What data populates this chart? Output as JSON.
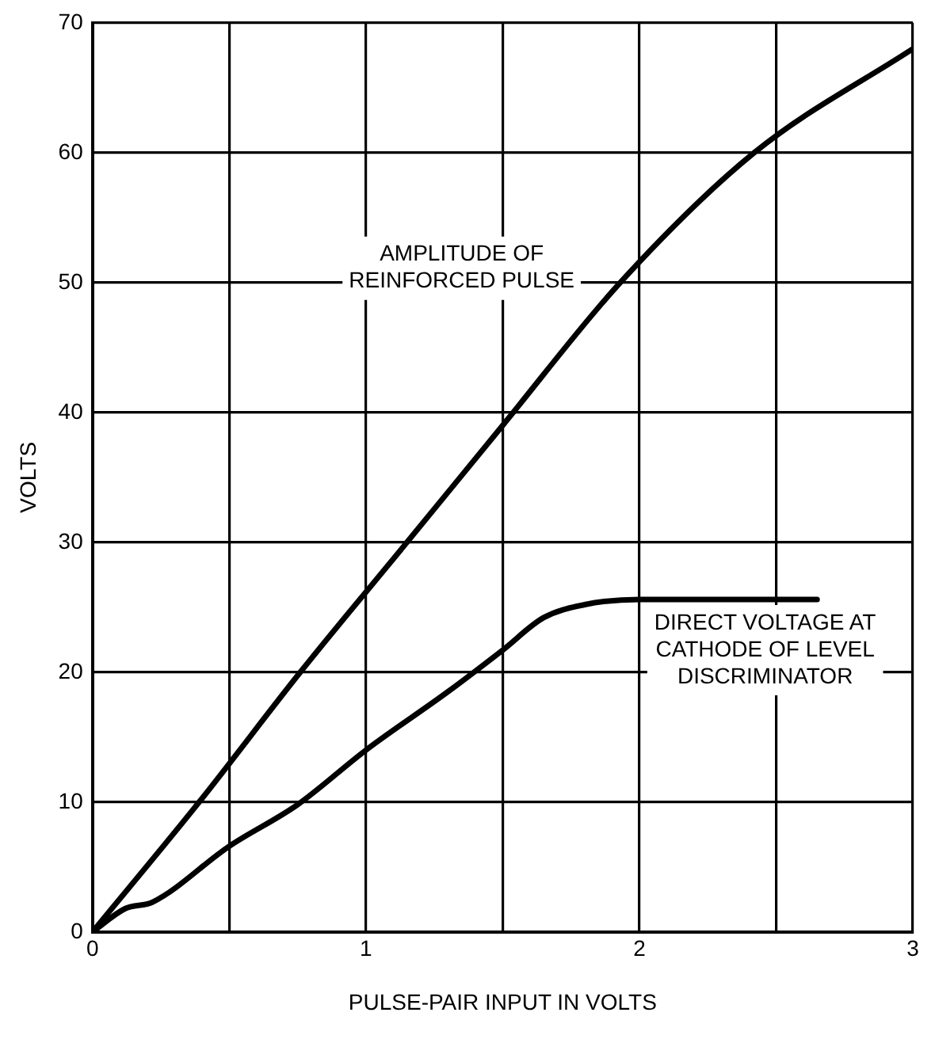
{
  "chart_data": {
    "type": "line",
    "xlabel": "PULSE-PAIR INPUT IN VOLTS",
    "ylabel": "VOLTS",
    "xlim": [
      0,
      3
    ],
    "ylim": [
      0,
      70
    ],
    "xticks": [
      0,
      {
        "value": 0.5,
        "label": null
      },
      1,
      {
        "value": 1.5,
        "label": null
      },
      2,
      {
        "value": 2.5,
        "label": null
      },
      3
    ],
    "yticks": [
      0,
      10,
      20,
      30,
      40,
      50,
      60,
      70
    ],
    "grid": true,
    "legend": false,
    "marker": "none",
    "line_style": "solid",
    "series": [
      {
        "name": "AMPLITUDE OF REINFORCED PULSE",
        "color": "#000000",
        "x": [
          0,
          0.39,
          0.76,
          1.15,
          1.5,
          1.93,
          2.42,
          3
        ],
        "values": [
          0,
          10,
          20,
          30,
          39,
          50,
          60,
          68
        ]
      },
      {
        "name": "DIRECT VOLTAGE AT CATHODE OF LEVEL DISCRIMINATOR",
        "color": "#000000",
        "x": [
          0,
          0.12,
          0.22,
          0.5,
          0.75,
          1,
          1.3,
          1.5,
          1.65,
          1.8,
          2,
          2.65
        ],
        "values": [
          0,
          1.8,
          2.3,
          6.6,
          9.8,
          14,
          18.5,
          21.7,
          24.2,
          25.2,
          25.6,
          25.6
        ]
      }
    ]
  }
}
